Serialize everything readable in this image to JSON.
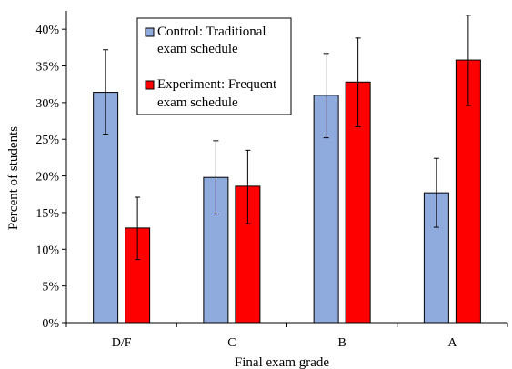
{
  "chart_data": {
    "type": "bar",
    "title": "",
    "xlabel": "Final exam grade",
    "ylabel": "Percent of students",
    "categories": [
      "D/F",
      "C",
      "B",
      "A"
    ],
    "ylim": [
      0,
      42.5
    ],
    "yticks": [
      0,
      5,
      10,
      15,
      20,
      25,
      30,
      35,
      40
    ],
    "ytick_labels": [
      "0%",
      "5%",
      "10%",
      "15%",
      "20%",
      "25%",
      "30%",
      "35%",
      "40%"
    ],
    "grid": false,
    "legend_position": "top-left",
    "series": [
      {
        "name": "Control: Traditional exam schedule",
        "legend_lines": [
          "Control: Traditional",
          "exam schedule"
        ],
        "color": "#8FAADC",
        "values": [
          31.4,
          19.8,
          31.0,
          17.7
        ],
        "error_low": [
          25.7,
          14.8,
          25.2,
          13.0
        ],
        "error_high": [
          37.2,
          24.8,
          36.7,
          22.4
        ]
      },
      {
        "name": "Experiment: Frequent exam schedule",
        "legend_lines": [
          "Experiment: Frequent",
          "exam schedule"
        ],
        "color": "#FF0000",
        "values": [
          12.9,
          18.6,
          32.8,
          35.8
        ],
        "error_low": [
          8.6,
          13.5,
          26.7,
          29.6
        ],
        "error_high": [
          17.1,
          23.5,
          38.8,
          41.9
        ]
      }
    ]
  }
}
